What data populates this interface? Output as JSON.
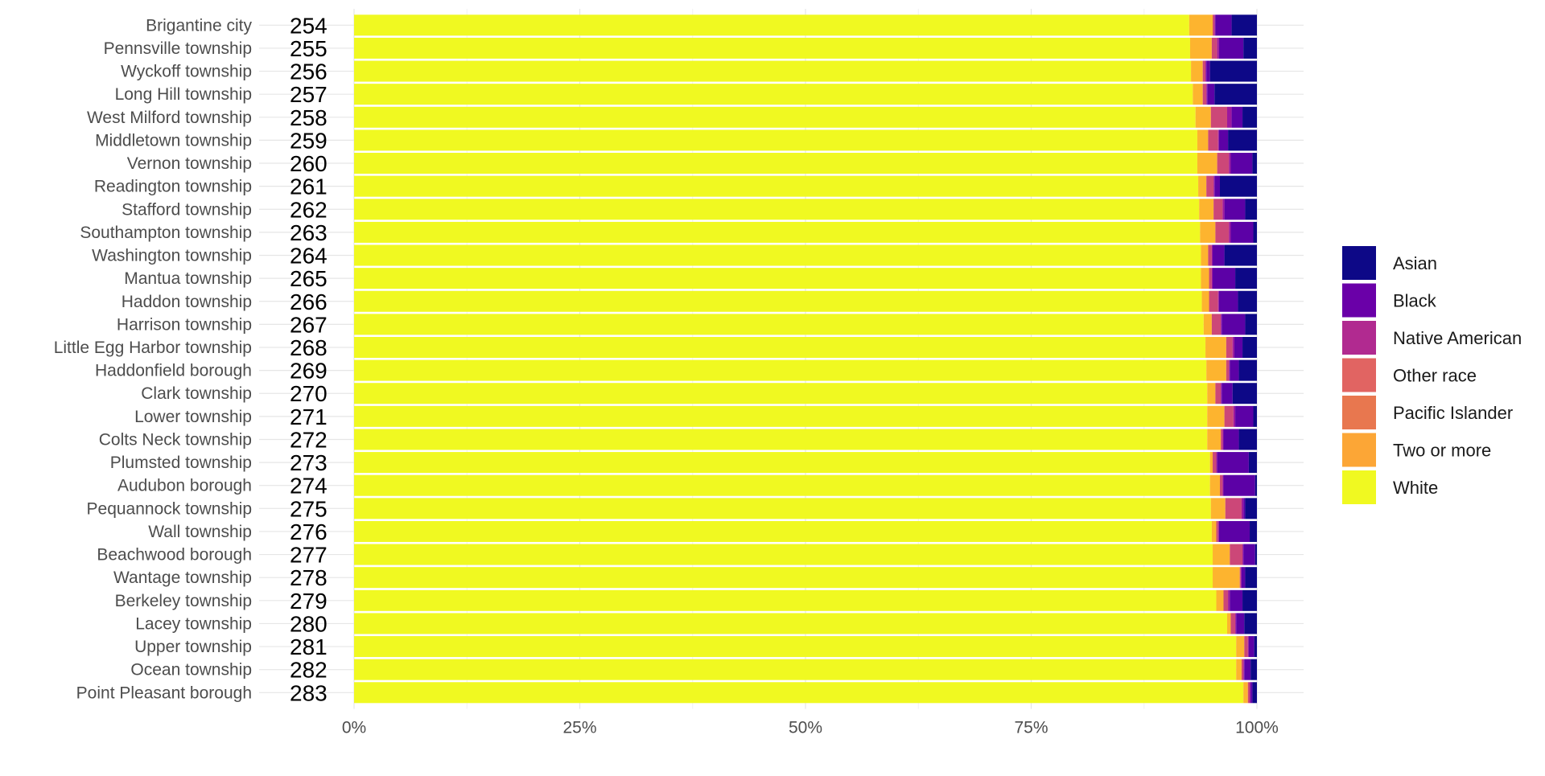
{
  "chart_data": {
    "type": "bar",
    "orientation": "horizontal",
    "stacked": true,
    "normalized": true,
    "title": "",
    "xlabel": "",
    "ylabel": "",
    "xlim": [
      0,
      1
    ],
    "x_ticks": [
      {
        "value": 0,
        "label": "0%"
      },
      {
        "value": 0.25,
        "label": "25%"
      },
      {
        "value": 0.5,
        "label": "50%"
      },
      {
        "value": 0.75,
        "label": "75%"
      },
      {
        "value": 1,
        "label": "100%"
      }
    ],
    "grid": true,
    "legend_position": "right",
    "legend": [
      {
        "key": "Asian",
        "label": "Asian",
        "color": "#0d0887"
      },
      {
        "key": "Black",
        "label": "Black",
        "color": "#6a00a8"
      },
      {
        "key": "Native American",
        "label": "Native American",
        "color": "#b12a90"
      },
      {
        "key": "Other race",
        "label": "Other race",
        "color": "#e16462"
      },
      {
        "key": "Pacific Islander",
        "label": "Pacific Islander",
        "color": "#e8774f"
      },
      {
        "key": "Two or more",
        "label": "Two or more",
        "color": "#fca636"
      },
      {
        "key": "White",
        "label": "White",
        "color": "#f0f921"
      }
    ],
    "stack_order": [
      "White",
      "Two or more",
      "Pacific Islander",
      "Other race",
      "Native American",
      "Black",
      "Asian"
    ],
    "series_colors": {
      "White": "#f0f921",
      "Two or more": "#fdb42f",
      "Pacific Islander": "#ed7953",
      "Other race": "#cc4778",
      "Native American": "#9c179e",
      "Black": "#5c01a6",
      "Asian": "#0d0887"
    },
    "rows": [
      {
        "name": "Brigantine city",
        "rank": "254",
        "values": {
          "White": 0.925,
          "Two or more": 0.026,
          "Pacific Islander": 0.0,
          "Other race": 0.002,
          "Native American": 0.001,
          "Black": 0.018,
          "Asian": 0.028
        }
      },
      {
        "name": "Pennsville township",
        "rank": "255",
        "values": {
          "White": 0.926,
          "Two or more": 0.024,
          "Pacific Islander": 0.0,
          "Other race": 0.006,
          "Native American": 0.002,
          "Black": 0.027,
          "Asian": 0.015
        }
      },
      {
        "name": "Wyckoff township",
        "rank": "256",
        "values": {
          "White": 0.927,
          "Two or more": 0.013,
          "Pacific Islander": 0.0,
          "Other race": 0.003,
          "Native American": 0.001,
          "Black": 0.004,
          "Asian": 0.052
        }
      },
      {
        "name": "Long Hill township",
        "rank": "257",
        "values": {
          "White": 0.929,
          "Two or more": 0.011,
          "Pacific Islander": 0.0,
          "Other race": 0.004,
          "Native American": 0.001,
          "Black": 0.008,
          "Asian": 0.047
        }
      },
      {
        "name": "West Milford township",
        "rank": "258",
        "values": {
          "White": 0.932,
          "Two or more": 0.017,
          "Pacific Islander": 0.0,
          "Other race": 0.018,
          "Native American": 0.005,
          "Black": 0.012,
          "Asian": 0.016
        }
      },
      {
        "name": "Middletown township",
        "rank": "259",
        "values": {
          "White": 0.934,
          "Two or more": 0.012,
          "Pacific Islander": 0.0,
          "Other race": 0.011,
          "Native American": 0.001,
          "Black": 0.01,
          "Asian": 0.032
        }
      },
      {
        "name": "Vernon township",
        "rank": "260",
        "values": {
          "White": 0.934,
          "Two or more": 0.022,
          "Pacific Islander": 0.0,
          "Other race": 0.013,
          "Native American": 0.002,
          "Black": 0.024,
          "Asian": 0.005
        }
      },
      {
        "name": "Readington township",
        "rank": "261",
        "values": {
          "White": 0.935,
          "Two or more": 0.009,
          "Pacific Islander": 0.0,
          "Other race": 0.008,
          "Native American": 0.001,
          "Black": 0.006,
          "Asian": 0.041
        }
      },
      {
        "name": "Stafford township",
        "rank": "262",
        "values": {
          "White": 0.936,
          "Two or more": 0.016,
          "Pacific Islander": 0.0,
          "Other race": 0.01,
          "Native American": 0.002,
          "Black": 0.023,
          "Asian": 0.013
        }
      },
      {
        "name": "Southampton township",
        "rank": "263",
        "values": {
          "White": 0.937,
          "Two or more": 0.017,
          "Pacific Islander": 0.0,
          "Other race": 0.015,
          "Native American": 0.002,
          "Black": 0.025,
          "Asian": 0.004
        }
      },
      {
        "name": "Washington township",
        "rank": "264",
        "values": {
          "White": 0.938,
          "Two or more": 0.008,
          "Pacific Islander": 0.0,
          "Other race": 0.004,
          "Native American": 0.001,
          "Black": 0.013,
          "Asian": 0.036
        }
      },
      {
        "name": "Mantua township",
        "rank": "265",
        "values": {
          "White": 0.938,
          "Two or more": 0.009,
          "Pacific Islander": 0.0,
          "Other race": 0.003,
          "Native American": 0.001,
          "Black": 0.025,
          "Asian": 0.024
        }
      },
      {
        "name": "Haddon township",
        "rank": "266",
        "values": {
          "White": 0.939,
          "Two or more": 0.008,
          "Pacific Islander": 0.0,
          "Other race": 0.01,
          "Native American": 0.001,
          "Black": 0.021,
          "Asian": 0.021
        }
      },
      {
        "name": "Harrison township",
        "rank": "267",
        "values": {
          "White": 0.941,
          "Two or more": 0.009,
          "Pacific Islander": 0.0,
          "Other race": 0.01,
          "Native American": 0.001,
          "Black": 0.026,
          "Asian": 0.013
        }
      },
      {
        "name": "Little Egg Harbor township",
        "rank": "268",
        "values": {
          "White": 0.943,
          "Two or more": 0.023,
          "Pacific Islander": 0.0,
          "Other race": 0.007,
          "Native American": 0.002,
          "Black": 0.009,
          "Asian": 0.016
        }
      },
      {
        "name": "Haddonfield borough",
        "rank": "269",
        "values": {
          "White": 0.944,
          "Two or more": 0.022,
          "Pacific Islander": 0.0,
          "Other race": 0.003,
          "Native American": 0.001,
          "Black": 0.01,
          "Asian": 0.02
        }
      },
      {
        "name": "Clark township",
        "rank": "270",
        "values": {
          "White": 0.945,
          "Two or more": 0.009,
          "Pacific Islander": 0.0,
          "Other race": 0.006,
          "Native American": 0.001,
          "Black": 0.012,
          "Asian": 0.027
        }
      },
      {
        "name": "Lower township",
        "rank": "271",
        "values": {
          "White": 0.945,
          "Two or more": 0.019,
          "Pacific Islander": 0.0,
          "Other race": 0.01,
          "Native American": 0.002,
          "Black": 0.02,
          "Asian": 0.004
        }
      },
      {
        "name": "Colts Neck township",
        "rank": "272",
        "values": {
          "White": 0.945,
          "Two or more": 0.015,
          "Pacific Islander": 0.0,
          "Other race": 0.002,
          "Native American": 0.001,
          "Black": 0.017,
          "Asian": 0.02
        }
      },
      {
        "name": "Plumsted township",
        "rank": "273",
        "values": {
          "White": 0.948,
          "Two or more": 0.003,
          "Pacific Islander": 0.0,
          "Other race": 0.004,
          "Native American": 0.001,
          "Black": 0.035,
          "Asian": 0.009
        }
      },
      {
        "name": "Audubon borough",
        "rank": "274",
        "values": {
          "White": 0.948,
          "Two or more": 0.011,
          "Pacific Islander": 0.0,
          "Other race": 0.003,
          "Native American": 0.001,
          "Black": 0.035,
          "Asian": 0.002
        }
      },
      {
        "name": "Pequannock township",
        "rank": "275",
        "values": {
          "White": 0.949,
          "Two or more": 0.016,
          "Pacific Islander": 0.0,
          "Other race": 0.018,
          "Native American": 0.002,
          "Black": 0.002,
          "Asian": 0.013
        }
      },
      {
        "name": "Wall township",
        "rank": "276",
        "values": {
          "White": 0.95,
          "Two or more": 0.005,
          "Pacific Islander": 0.0,
          "Other race": 0.002,
          "Native American": 0.001,
          "Black": 0.034,
          "Asian": 0.008
        }
      },
      {
        "name": "Beachwood borough",
        "rank": "277",
        "values": {
          "White": 0.951,
          "Two or more": 0.019,
          "Pacific Islander": 0.0,
          "Other race": 0.014,
          "Native American": 0.001,
          "Black": 0.013,
          "Asian": 0.002
        }
      },
      {
        "name": "Wantage township",
        "rank": "278",
        "values": {
          "White": 0.951,
          "Two or more": 0.03,
          "Pacific Islander": 0.0,
          "Other race": 0.001,
          "Native American": 0.001,
          "Black": 0.004,
          "Asian": 0.013
        }
      },
      {
        "name": "Berkeley township",
        "rank": "279",
        "values": {
          "White": 0.955,
          "Two or more": 0.008,
          "Pacific Islander": 0.0,
          "Other race": 0.005,
          "Native American": 0.002,
          "Black": 0.014,
          "Asian": 0.016
        }
      },
      {
        "name": "Lacey township",
        "rank": "280",
        "values": {
          "White": 0.967,
          "Two or more": 0.004,
          "Pacific Islander": 0.0,
          "Other race": 0.005,
          "Native American": 0.001,
          "Black": 0.009,
          "Asian": 0.014
        }
      },
      {
        "name": "Upper township",
        "rank": "281",
        "values": {
          "White": 0.977,
          "Two or more": 0.009,
          "Pacific Islander": 0.0,
          "Other race": 0.004,
          "Native American": 0.001,
          "Black": 0.006,
          "Asian": 0.003
        }
      },
      {
        "name": "Ocean township",
        "rank": "282",
        "values": {
          "White": 0.977,
          "Two or more": 0.006,
          "Pacific Islander": 0.0,
          "Other race": 0.002,
          "Native American": 0.001,
          "Black": 0.007,
          "Asian": 0.007
        }
      },
      {
        "name": "Point Pleasant borough",
        "rank": "283",
        "values": {
          "White": 0.985,
          "Two or more": 0.005,
          "Pacific Islander": 0.0,
          "Other race": 0.002,
          "Native American": 0.001,
          "Black": 0.002,
          "Asian": 0.005
        }
      }
    ]
  }
}
